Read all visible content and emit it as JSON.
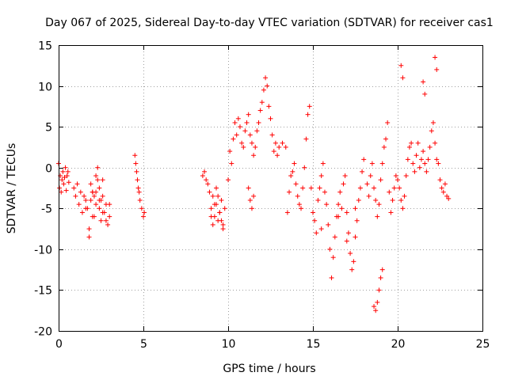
{
  "chart_data": {
    "type": "scatter",
    "title": "Day 067 of 2025, Sidereal Day-to-day VTEC variation (SDTVAR) for receiver cas1",
    "xlabel": "GPS time / hours",
    "ylabel": "SDTVAR / TECUs",
    "xlim": [
      0,
      25
    ],
    "ylim": [
      -20,
      15
    ],
    "xticks": [
      0,
      5,
      10,
      15,
      20,
      25
    ],
    "yticks": [
      -20,
      -15,
      -10,
      -5,
      0,
      5,
      10,
      15
    ],
    "xtick_labels": [
      "0",
      "5",
      "10",
      "15",
      "20",
      "25"
    ],
    "ytick_labels": [
      "-20",
      "-15",
      "-10",
      "-5",
      "0",
      "5",
      "10",
      "15"
    ],
    "grid": true,
    "marker": "+",
    "color": "#ff0000",
    "series": [
      {
        "name": "cas1",
        "x": [
          0.0,
          0.05,
          0.1,
          0.15,
          0.2,
          0.25,
          0.3,
          0.35,
          0.4,
          0.45,
          0.5,
          0.55,
          0.6,
          0.9,
          1.0,
          1.1,
          1.2,
          1.3,
          1.4,
          1.5,
          1.6,
          1.7,
          1.8,
          1.9,
          2.0,
          2.1,
          2.2,
          2.3,
          2.4,
          2.5,
          2.6,
          2.7,
          2.8,
          2.9,
          3.0,
          1.6,
          1.8,
          2.0,
          2.2,
          2.4,
          2.6,
          2.8,
          3.0,
          1.9,
          2.0,
          2.1,
          2.2,
          2.3,
          2.4,
          2.5,
          2.6,
          4.5,
          4.55,
          4.6,
          4.65,
          4.7,
          4.75,
          4.8,
          4.9,
          5.0,
          5.05,
          8.5,
          8.6,
          8.7,
          8.8,
          8.9,
          9.0,
          9.1,
          9.2,
          9.3,
          9.4,
          9.5,
          9.6,
          9.7,
          9.8,
          9.0,
          9.1,
          9.2,
          9.3,
          9.4,
          9.5,
          9.6,
          9.7,
          10.0,
          10.1,
          10.2,
          10.3,
          10.4,
          10.5,
          10.6,
          10.7,
          10.8,
          10.9,
          11.0,
          11.1,
          11.2,
          11.3,
          11.4,
          11.5,
          11.6,
          11.7,
          11.8,
          11.9,
          12.0,
          12.1,
          12.2,
          12.3,
          12.4,
          12.5,
          12.6,
          12.7,
          12.8,
          12.9,
          13.0,
          13.2,
          13.4,
          11.2,
          11.3,
          11.4,
          11.5,
          13.5,
          13.6,
          13.7,
          13.8,
          13.9,
          14.0,
          14.1,
          14.2,
          14.3,
          14.4,
          14.5,
          14.6,
          14.7,
          14.8,
          14.9,
          15.0,
          15.1,
          15.2,
          15.3,
          15.4,
          15.5,
          15.6,
          15.7,
          15.8,
          15.9,
          16.0,
          16.1,
          16.2,
          16.3,
          16.4,
          16.5,
          16.6,
          16.7,
          16.8,
          16.9,
          17.0,
          17.1,
          17.2,
          17.3,
          17.4,
          17.5,
          17.6,
          17.7,
          17.8,
          17.9,
          18.0,
          15.5,
          16.5,
          17.0,
          17.5,
          18.2,
          18.3,
          18.4,
          18.5,
          18.6,
          18.7,
          18.8,
          18.9,
          19.0,
          19.1,
          19.2,
          19.3,
          19.4,
          19.5,
          19.6,
          19.7,
          19.8,
          19.9,
          18.6,
          18.7,
          18.8,
          18.9,
          19.0,
          19.1,
          20.0,
          20.1,
          20.2,
          20.3,
          20.4,
          20.5,
          20.6,
          20.7,
          20.8,
          20.9,
          21.0,
          21.1,
          21.2,
          21.3,
          21.4,
          21.5,
          21.6,
          21.7,
          21.8,
          21.9,
          22.0,
          22.1,
          22.2,
          22.3,
          22.4,
          22.5,
          22.6,
          22.7,
          22.8,
          22.9,
          23.0,
          20.2,
          20.3,
          21.5,
          21.6,
          22.2,
          22.3
        ],
        "y": [
          0.5,
          -2.5,
          -1.0,
          -3.0,
          -1.5,
          -0.5,
          -2.0,
          -1.2,
          0.0,
          -2.8,
          -1.0,
          -0.5,
          -1.8,
          -2.5,
          -3.5,
          -2.0,
          -4.5,
          -3.0,
          -5.5,
          -3.5,
          -4.0,
          -5.0,
          -8.5,
          -4.0,
          -3.0,
          -6.0,
          -4.5,
          -1.5,
          -5.0,
          -6.5,
          -3.5,
          -5.5,
          -4.5,
          -7.0,
          -6.0,
          -5.0,
          -7.5,
          -6.0,
          -3.0,
          -4.0,
          -5.5,
          -6.5,
          -4.5,
          -2.0,
          -3.0,
          -3.5,
          -1.0,
          0.0,
          -2.5,
          -4.0,
          -1.5,
          1.5,
          0.5,
          -0.5,
          -1.5,
          -2.5,
          -3.0,
          -4.0,
          -5.0,
          -6.0,
          -5.5,
          -1.0,
          -0.5,
          -1.5,
          -2.0,
          -3.0,
          -5.0,
          -7.0,
          -6.0,
          -4.5,
          -3.5,
          -5.5,
          -6.5,
          -7.5,
          -5.0,
          -6.0,
          -3.5,
          -4.5,
          -2.5,
          -6.5,
          -5.5,
          -4.0,
          -7.0,
          -1.5,
          2.0,
          0.5,
          3.5,
          5.5,
          4.0,
          6.0,
          5.0,
          3.0,
          2.5,
          4.5,
          5.5,
          6.5,
          4.0,
          3.0,
          1.5,
          2.5,
          4.5,
          5.5,
          7.0,
          8.0,
          9.5,
          11.0,
          10.0,
          7.5,
          6.0,
          4.0,
          2.0,
          3.0,
          1.5,
          2.5,
          3.0,
          2.5,
          -2.5,
          -4.0,
          -5.0,
          -3.5,
          -5.5,
          -3.0,
          -1.0,
          -0.5,
          0.5,
          -2.0,
          -3.5,
          -4.5,
          -5.0,
          -2.5,
          0.0,
          3.5,
          6.5,
          7.5,
          -2.5,
          -5.5,
          -6.5,
          -8.0,
          -4.0,
          -2.5,
          -1.0,
          0.5,
          -3.0,
          -4.5,
          -7.0,
          -10.0,
          -13.5,
          -11.0,
          -8.5,
          -6.0,
          -4.5,
          -3.0,
          -5.0,
          -2.0,
          -1.0,
          -5.5,
          -8.0,
          -10.5,
          -12.5,
          -11.5,
          -8.5,
          -6.5,
          -4.0,
          -2.5,
          -0.5,
          1.0,
          -7.5,
          -6.0,
          -9.0,
          -5.0,
          -2.0,
          -3.5,
          -1.0,
          0.5,
          -2.5,
          -4.0,
          -6.0,
          -4.5,
          -1.5,
          0.5,
          2.5,
          3.5,
          5.5,
          -3.0,
          -5.5,
          -4.0,
          -2.5,
          -1.0,
          -17.0,
          -17.5,
          -16.5,
          -15.0,
          -13.5,
          -12.5,
          -1.5,
          -2.5,
          -4.0,
          -5.0,
          -3.5,
          -1.0,
          1.0,
          2.5,
          3.0,
          0.5,
          -0.5,
          1.5,
          3.0,
          0.0,
          1.0,
          2.0,
          0.5,
          -0.5,
          1.0,
          2.5,
          4.5,
          5.5,
          3.0,
          1.0,
          0.5,
          -1.5,
          -2.5,
          -3.0,
          -2.0,
          -3.5,
          -3.8,
          12.5,
          11.0,
          10.5,
          9.0,
          13.5,
          12.0
        ]
      }
    ]
  }
}
